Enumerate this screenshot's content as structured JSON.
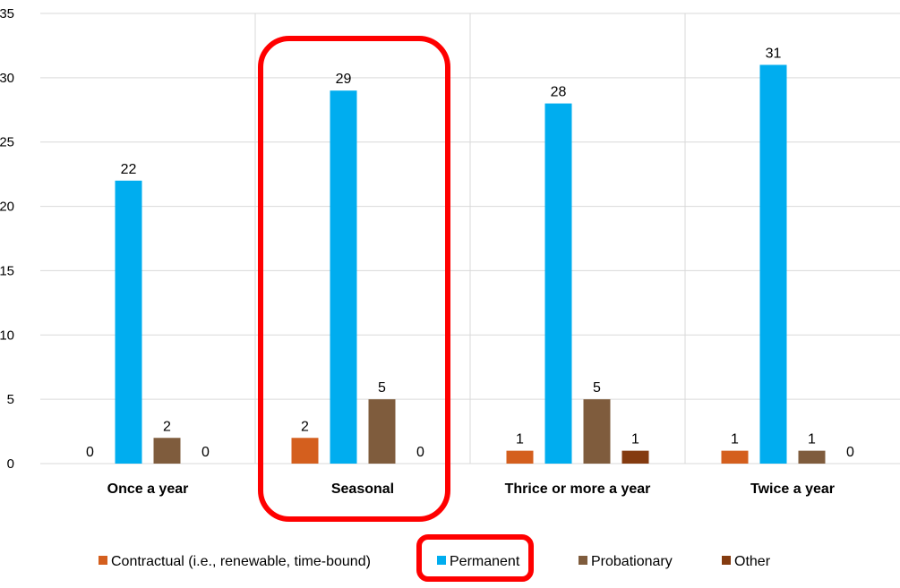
{
  "chart_data": {
    "type": "bar",
    "categories": [
      "Once a year",
      "Seasonal",
      "Thrice or more a year",
      "Twice a year"
    ],
    "series": [
      {
        "name": "Contractual (i.e., renewable, time-bound)",
        "color": "#d45f1e",
        "values": [
          0,
          2,
          1,
          1
        ]
      },
      {
        "name": "Permanent",
        "color": "#00adef",
        "values": [
          22,
          29,
          28,
          31
        ]
      },
      {
        "name": "Probationary",
        "color": "#7f5c3d",
        "values": [
          2,
          5,
          5,
          1
        ]
      },
      {
        "name": "Other",
        "color": "#843b10",
        "values": [
          0,
          0,
          1,
          0
        ]
      }
    ],
    "ylim": [
      0,
      35
    ],
    "yticks": [
      0,
      5,
      10,
      15,
      20,
      25,
      30,
      35
    ],
    "grid": true,
    "legend_position": "bottom",
    "highlight": {
      "category": "Seasonal",
      "legend_entry": "Permanent",
      "color": "#ff0000"
    }
  }
}
